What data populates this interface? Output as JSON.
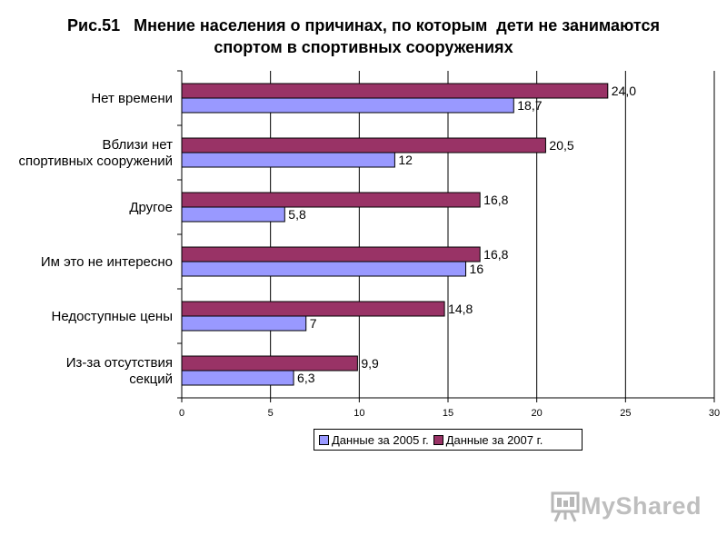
{
  "figure": {
    "title_line1": "Рис.51   Мнение населения о причинах, по которым  дети не занимаются",
    "title_line2": "спортом в спортивных сооружениях"
  },
  "chart_data": {
    "type": "bar",
    "orientation": "horizontal",
    "categories": [
      [
        "Нет времени"
      ],
      [
        "Вблизи нет",
        "спортивных сооружений"
      ],
      [
        "Другое"
      ],
      [
        "Им  это не интересно"
      ],
      [
        "Недоступные цены"
      ],
      [
        "Из-за отсутствия",
        "секций"
      ]
    ],
    "series": [
      {
        "name": "Данные за 2007 г.",
        "values": [
          24.0,
          20.5,
          16.8,
          16.8,
          14.8,
          9.9
        ],
        "labels": [
          "24,0",
          "20,5",
          "16,8",
          "16,8",
          "14,8",
          "9,9"
        ],
        "color": "#993366"
      },
      {
        "name": "Данные за 2005 г.",
        "values": [
          18.7,
          12,
          5.8,
          16,
          7,
          6.3
        ],
        "labels": [
          "18,7",
          "12",
          "5,8",
          "16",
          "7",
          "6,3"
        ],
        "color": "#9999ff"
      }
    ],
    "xlim": [
      0,
      30
    ],
    "ticks": [
      0,
      5,
      10,
      15,
      20,
      25,
      30
    ],
    "tick_labels": [
      "0",
      "5",
      "10",
      "15",
      "20",
      "25",
      "30"
    ],
    "grid": true,
    "legend_position": "bottom",
    "legend_order": [
      "Данные за 2005 г.",
      "Данные за 2007 г."
    ]
  },
  "logo": {
    "text": "MyShared",
    "icon": "presentation-board-icon"
  }
}
